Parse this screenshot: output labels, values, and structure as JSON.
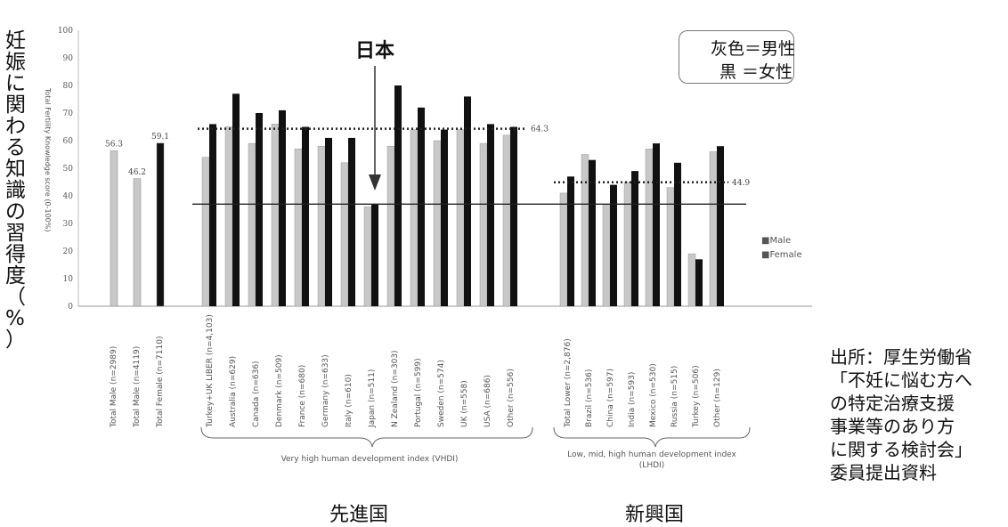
{
  "chart_data": {
    "type": "bar",
    "ylabel": "妊娠に関わる知識の習得度（%）",
    "ylabel_small": "Total Fertility Knowledge score (0-100%)",
    "ylim": [
      0,
      100
    ],
    "y_ticks": [
      "0",
      "10",
      "20",
      "30",
      "40",
      "50",
      "60",
      "70",
      "80",
      "90",
      "100"
    ],
    "categories": [
      "Total Male (n=2989)",
      "Total Male (n=4119)",
      "Total Female (n=7110)",
      "Turkey+UK LIBER (n=4,103)",
      "Australia (n=629)",
      "Canada (n=636)",
      "Denmark (n=509)",
      "France (n=680)",
      "Germany (n=633)",
      "Italy (n=610)",
      "Japan (n=511)",
      "N Zealand (n=303)",
      "Portugal (n=599)",
      "Sweden (n=574)",
      "UK (n=558)",
      "USA (n=686)",
      "Other (n=556)",
      "Total Lower (n=2,876)",
      "Brazil (n=536)",
      "China (n=597)",
      "India (n=593)",
      "Mexico (n=530)",
      "Russia (n=515)",
      "Turkey (n=506)",
      "Other (n=129)"
    ],
    "series": [
      {
        "name": "Male",
        "color": "#c8c8c8",
        "values": [
          56.3,
          null,
          null,
          54,
          65,
          59,
          66,
          57,
          58,
          52,
          36,
          58,
          64,
          60,
          64,
          59,
          62,
          41,
          55,
          37,
          45,
          57,
          43,
          19,
          56
        ]
      },
      {
        "name": "Female",
        "color": "#111111",
        "values": [
          null,
          null,
          59.1,
          66,
          77,
          70,
          71,
          65,
          61,
          61,
          37,
          80,
          72,
          64,
          76,
          66,
          65,
          47,
          53,
          44,
          49,
          59,
          52,
          17,
          58
        ]
      },
      {
        "name": "Total",
        "color": "#c8c8c8",
        "values": [
          null,
          46.2,
          null,
          null,
          null,
          null,
          null,
          null,
          null,
          null,
          null,
          null,
          null,
          null,
          null,
          null,
          null,
          null,
          null,
          null,
          null,
          null,
          null,
          null,
          null
        ]
      }
    ],
    "bar_labels": [
      "56.3",
      "46.2",
      "59.1"
    ],
    "ref_lines": [
      {
        "label": "64.3",
        "value": 64.3,
        "style": "dotted",
        "group": "developed"
      },
      {
        "label": "44.9",
        "value": 44.9,
        "style": "dotted",
        "group": "emerging"
      },
      {
        "value": 37,
        "style": "solid",
        "group": "japan"
      }
    ],
    "legend_small": [
      "■Male",
      "■Female"
    ],
    "annotation_japan": "日本",
    "legend_box": [
      "灰色＝男性",
      "黒 ＝女性"
    ],
    "groups": [
      {
        "title": "先進国",
        "sub": "Very high human development index (VHDI)"
      },
      {
        "title": "新興国",
        "sub": "Low, mid, high human development index (LHDI)"
      }
    ]
  },
  "note": [
    "出所：厚生労働省",
    "「不妊に悩む方へ",
    "の特定治療支援",
    "事業等のあり方",
    "に関する検討会」",
    "委員提出資料"
  ],
  "colors": {
    "male": "#c8c8c8",
    "female": "#111111",
    "axis": "#888888"
  }
}
